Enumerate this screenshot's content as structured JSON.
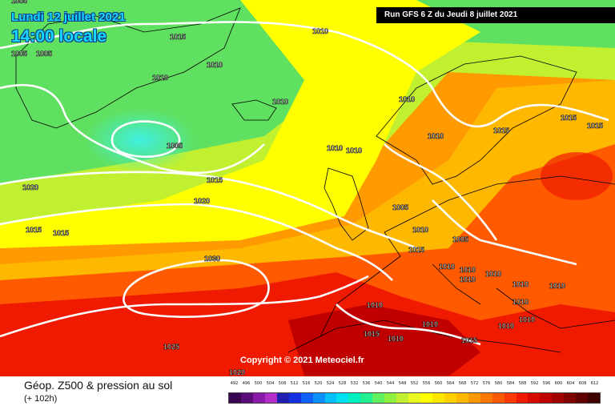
{
  "header": {
    "date": "Lundi 12 juillet 2021",
    "time": "14:00 locale",
    "run": "Run GFS 6 Z du Jeudi 8 juillet 2021"
  },
  "copyright": "Copyright © 2021 Meteociel.fr",
  "legend": {
    "title": "Géop. Z500 & pression au sol",
    "subtitle": "(+ 102h)",
    "ticks": [
      "492",
      "496",
      "500",
      "504",
      "508",
      "512",
      "516",
      "520",
      "524",
      "528",
      "532",
      "536",
      "540",
      "544",
      "548",
      "552",
      "556",
      "560",
      "564",
      "568",
      "572",
      "576",
      "580",
      "584",
      "588",
      "592",
      "596",
      "600",
      "604",
      "608",
      "612"
    ],
    "colors": [
      "#3a0550",
      "#5a0c78",
      "#8a1aa8",
      "#b22cc8",
      "#2020b0",
      "#1530e0",
      "#1060ff",
      "#0a90ff",
      "#00c0ff",
      "#00e0f0",
      "#00f0c0",
      "#20f090",
      "#60f060",
      "#90f040",
      "#c0f030",
      "#e8f820",
      "#ffff00",
      "#ffe800",
      "#ffd000",
      "#ffb800",
      "#ff9800",
      "#ff7800",
      "#ff5a00",
      "#ff3a00",
      "#f01a00",
      "#d80a00",
      "#c00000",
      "#a00000",
      "#800000",
      "#600000",
      "#400000"
    ]
  },
  "isobars": [
    {
      "label": "1005",
      "icon": "isobar-label"
    },
    {
      "label": "1005",
      "icon": "isobar-label"
    },
    {
      "label": "1005",
      "icon": "isobar-label"
    },
    {
      "label": "1005",
      "icon": "isobar-label"
    },
    {
      "label": "1005",
      "icon": "isobar-label"
    },
    {
      "label": "1005",
      "icon": "isobar-label"
    },
    {
      "label": "1010",
      "icon": "isobar-label"
    },
    {
      "label": "1010",
      "icon": "isobar-label"
    },
    {
      "label": "1010",
      "icon": "isobar-label"
    },
    {
      "label": "1010",
      "icon": "isobar-label"
    },
    {
      "label": "1010",
      "icon": "isobar-label"
    },
    {
      "label": "1010",
      "icon": "isobar-label"
    },
    {
      "label": "1010",
      "icon": "isobar-label"
    },
    {
      "label": "1010",
      "icon": "isobar-label"
    },
    {
      "label": "1010",
      "icon": "isobar-label"
    },
    {
      "label": "1010",
      "icon": "isobar-label"
    },
    {
      "label": "1010",
      "icon": "isobar-label"
    },
    {
      "label": "1010",
      "icon": "isobar-label"
    },
    {
      "label": "1010",
      "icon": "isobar-label"
    },
    {
      "label": "1010",
      "icon": "isobar-label"
    },
    {
      "label": "1010",
      "icon": "isobar-label"
    },
    {
      "label": "1010",
      "icon": "isobar-label"
    },
    {
      "label": "1010",
      "icon": "isobar-label"
    },
    {
      "label": "1010",
      "icon": "isobar-label"
    },
    {
      "label": "1010",
      "icon": "isobar-label"
    },
    {
      "label": "1010",
      "icon": "isobar-label"
    },
    {
      "label": "1015",
      "icon": "isobar-label"
    },
    {
      "label": "1015",
      "icon": "isobar-label"
    },
    {
      "label": "1015",
      "icon": "isobar-label"
    },
    {
      "label": "1015",
      "icon": "isobar-label"
    },
    {
      "label": "1015",
      "icon": "isobar-label"
    },
    {
      "label": "1015",
      "icon": "isobar-label"
    },
    {
      "label": "1015",
      "icon": "isobar-label"
    },
    {
      "label": "1015",
      "icon": "isobar-label"
    },
    {
      "label": "1015",
      "icon": "isobar-label"
    },
    {
      "label": "1015",
      "icon": "isobar-label"
    },
    {
      "label": "1020",
      "icon": "isobar-label"
    },
    {
      "label": "1020",
      "icon": "isobar-label"
    },
    {
      "label": "1020",
      "icon": "isobar-label"
    },
    {
      "label": "1025",
      "icon": "isobar-label"
    },
    {
      "label": "1030",
      "icon": "isobar-label"
    },
    {
      "label": "1010",
      "icon": "isobar-label"
    }
  ]
}
